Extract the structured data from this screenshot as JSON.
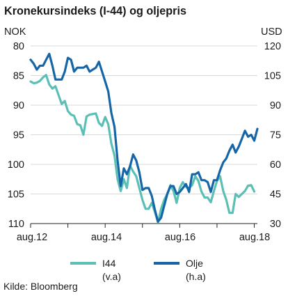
{
  "chart_data": {
    "type": "line",
    "title": "Kronekursindeks (I-44) og oljepris",
    "left_axis_unit": "NOK",
    "right_axis_unit": "USD",
    "left_axis": {
      "inverted": true,
      "range": [
        80,
        110
      ],
      "ticks": [
        80,
        85,
        90,
        95,
        100,
        105,
        110
      ]
    },
    "right_axis": {
      "inverted": false,
      "range": [
        30,
        120
      ],
      "ticks": [
        30,
        45,
        60,
        75,
        90,
        105,
        120
      ]
    },
    "x_labels": [
      "aug.12",
      "aug.14",
      "aug.16",
      "aug.18"
    ],
    "x_range": [
      "2012-08",
      "2018-09"
    ],
    "series": [
      {
        "name": "I44",
        "axis_note": "(v.a)",
        "axis": "left",
        "color": "#5bbfb5",
        "points": [
          [
            "2012-08",
            86.0
          ],
          [
            "2012-09",
            86.3
          ],
          [
            "2012-10",
            86.2
          ],
          [
            "2012-11",
            85.9
          ],
          [
            "2012-12",
            85.3
          ],
          [
            "2013-01",
            84.9
          ],
          [
            "2013-02",
            86.5
          ],
          [
            "2013-03",
            87.2
          ],
          [
            "2013-04",
            86.8
          ],
          [
            "2013-05",
            88.3
          ],
          [
            "2013-06",
            89.8
          ],
          [
            "2013-07",
            89.3
          ],
          [
            "2013-08",
            91.0
          ],
          [
            "2013-09",
            91.6
          ],
          [
            "2013-10",
            91.8
          ],
          [
            "2013-11",
            93.2
          ],
          [
            "2013-12",
            93.4
          ],
          [
            "2014-01",
            95.0
          ],
          [
            "2014-02",
            91.9
          ],
          [
            "2014-03",
            91.6
          ],
          [
            "2014-04",
            91.5
          ],
          [
            "2014-05",
            91.4
          ],
          [
            "2014-06",
            93.0
          ],
          [
            "2014-07",
            93.5
          ],
          [
            "2014-08",
            92.0
          ],
          [
            "2014-09",
            93.2
          ],
          [
            "2014-10",
            96.5
          ],
          [
            "2014-11",
            98.5
          ],
          [
            "2014-12",
            102.5
          ],
          [
            "2015-01",
            104.5
          ],
          [
            "2015-02",
            102.5
          ],
          [
            "2015-03",
            104.0
          ],
          [
            "2015-04",
            100.2
          ],
          [
            "2015-05",
            101.2
          ],
          [
            "2015-06",
            102.0
          ],
          [
            "2015-07",
            104.0
          ],
          [
            "2015-08",
            106.0
          ],
          [
            "2015-09",
            107.5
          ],
          [
            "2015-10",
            107.5
          ],
          [
            "2015-11",
            106.5
          ],
          [
            "2015-12",
            108.0
          ],
          [
            "2016-01",
            109.8
          ],
          [
            "2016-02",
            107.5
          ],
          [
            "2016-03",
            106.0
          ],
          [
            "2016-04",
            105.0
          ],
          [
            "2016-05",
            103.5
          ],
          [
            "2016-06",
            104.5
          ],
          [
            "2016-07",
            106.5
          ],
          [
            "2016-08",
            104.0
          ],
          [
            "2016-09",
            103.0
          ],
          [
            "2016-10",
            103.8
          ],
          [
            "2016-11",
            104.0
          ],
          [
            "2016-12",
            103.5
          ],
          [
            "2017-01",
            102.0
          ],
          [
            "2017-02",
            102.8
          ],
          [
            "2017-03",
            104.6
          ],
          [
            "2017-04",
            105.6
          ],
          [
            "2017-05",
            105.6
          ],
          [
            "2017-06",
            106.4
          ],
          [
            "2017-07",
            104.5
          ],
          [
            "2017-08",
            102.8
          ],
          [
            "2017-09",
            102.0
          ],
          [
            "2017-10",
            104.5
          ],
          [
            "2017-11",
            106.0
          ],
          [
            "2017-12",
            108.2
          ],
          [
            "2018-01",
            108.2
          ],
          [
            "2018-02",
            105.0
          ],
          [
            "2018-03",
            105.5
          ],
          [
            "2018-04",
            105.0
          ],
          [
            "2018-05",
            104.5
          ],
          [
            "2018-06",
            103.6
          ],
          [
            "2018-07",
            103.5
          ],
          [
            "2018-08",
            104.6
          ]
        ]
      },
      {
        "name": "Olje",
        "axis_note": "(h.a)",
        "axis": "right",
        "color": "#1565a7",
        "points": [
          [
            "2012-08",
            113
          ],
          [
            "2012-09",
            111
          ],
          [
            "2012-10",
            108
          ],
          [
            "2012-11",
            110
          ],
          [
            "2012-12",
            110
          ],
          [
            "2013-01",
            113
          ],
          [
            "2013-02",
            116
          ],
          [
            "2013-03",
            110
          ],
          [
            "2013-04",
            103
          ],
          [
            "2013-05",
            103
          ],
          [
            "2013-06",
            103
          ],
          [
            "2013-07",
            107
          ],
          [
            "2013-08",
            114
          ],
          [
            "2013-09",
            113
          ],
          [
            "2013-10",
            107
          ],
          [
            "2013-11",
            109
          ],
          [
            "2013-12",
            109
          ],
          [
            "2014-01",
            109
          ],
          [
            "2014-02",
            110
          ],
          [
            "2014-03",
            107
          ],
          [
            "2014-04",
            108
          ],
          [
            "2014-05",
            109
          ],
          [
            "2014-06",
            112
          ],
          [
            "2014-07",
            107
          ],
          [
            "2014-08",
            102
          ],
          [
            "2014-09",
            97
          ],
          [
            "2014-10",
            86
          ],
          [
            "2014-11",
            79
          ],
          [
            "2014-12",
            62
          ],
          [
            "2015-01",
            49
          ],
          [
            "2015-02",
            58
          ],
          [
            "2015-03",
            55
          ],
          [
            "2015-04",
            59
          ],
          [
            "2015-05",
            65
          ],
          [
            "2015-06",
            62
          ],
          [
            "2015-07",
            56
          ],
          [
            "2015-08",
            47
          ],
          [
            "2015-09",
            48
          ],
          [
            "2015-10",
            48
          ],
          [
            "2015-11",
            44
          ],
          [
            "2015-12",
            37
          ],
          [
            "2016-01",
            31
          ],
          [
            "2016-02",
            33
          ],
          [
            "2016-03",
            39
          ],
          [
            "2016-04",
            45
          ],
          [
            "2016-05",
            49
          ],
          [
            "2016-06",
            49
          ],
          [
            "2016-07",
            45
          ],
          [
            "2016-08",
            46
          ],
          [
            "2016-09",
            48
          ],
          [
            "2016-10",
            50
          ],
          [
            "2016-11",
            46
          ],
          [
            "2016-12",
            55
          ],
          [
            "2017-01",
            55
          ],
          [
            "2017-02",
            56
          ],
          [
            "2017-03",
            52
          ],
          [
            "2017-04",
            52
          ],
          [
            "2017-05",
            51
          ],
          [
            "2017-06",
            46
          ],
          [
            "2017-07",
            52
          ],
          [
            "2017-08",
            52
          ],
          [
            "2017-09",
            57
          ],
          [
            "2017-10",
            61
          ],
          [
            "2017-11",
            63
          ],
          [
            "2017-12",
            67
          ],
          [
            "2018-01",
            70
          ],
          [
            "2018-02",
            66
          ],
          [
            "2018-03",
            69
          ],
          [
            "2018-04",
            73
          ],
          [
            "2018-05",
            77
          ],
          [
            "2018-06",
            74
          ],
          [
            "2018-07",
            75
          ],
          [
            "2018-08",
            72
          ],
          [
            "2018-09",
            78
          ]
        ]
      }
    ],
    "grid": true,
    "legend_position": "bottom"
  },
  "source": "Kilde: Bloomberg"
}
